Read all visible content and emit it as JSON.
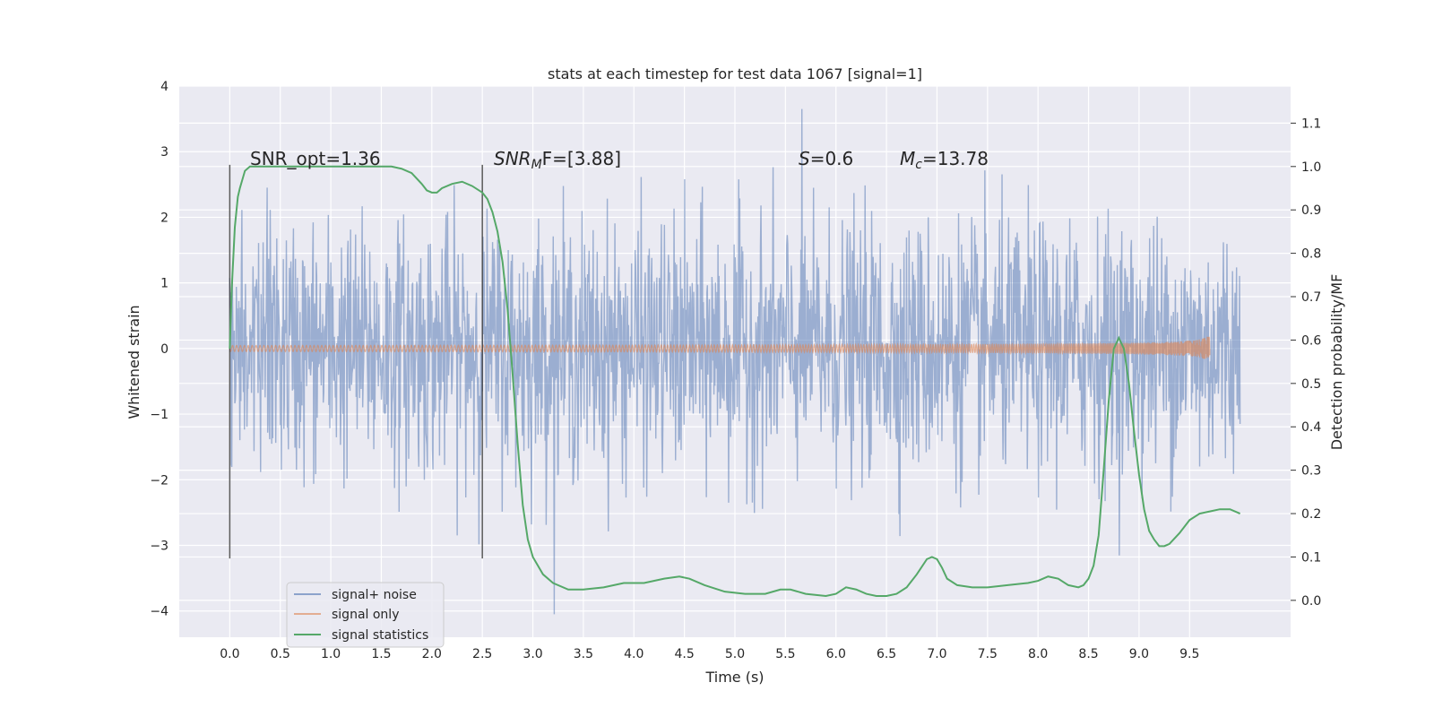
{
  "chart_data": {
    "type": "line",
    "title": "stats at each timestep for test data 1067 [signal=1]",
    "xlabel": "Time (s)",
    "ylabel": "Whitened strain",
    "y2label": "Detection probability/MF",
    "xlim": [
      -0.5,
      10.5
    ],
    "ylim": [
      -4.4,
      4.0
    ],
    "y2lim": [
      -0.085,
      1.1855
    ],
    "x_ticks": [
      0.0,
      0.5,
      1.0,
      1.5,
      2.0,
      2.5,
      3.0,
      3.5,
      4.0,
      4.5,
      5.0,
      5.5,
      6.0,
      6.5,
      7.0,
      7.5,
      8.0,
      8.5,
      9.0,
      9.5
    ],
    "x_tick_labels": [
      "0.0",
      "0.5",
      "1.0",
      "1.5",
      "2.0",
      "2.5",
      "3.0",
      "3.5",
      "4.0",
      "4.5",
      "5.0",
      "5.5",
      "6.0",
      "6.5",
      "7.0",
      "7.5",
      "8.0",
      "8.5",
      "9.0",
      "9.5"
    ],
    "y_ticks": [
      4,
      3,
      2,
      1,
      0,
      -1,
      -2,
      -3,
      -4
    ],
    "y_tick_labels": [
      "4",
      "3",
      "2",
      "1",
      "0",
      "−1",
      "−2",
      "−3",
      "−4"
    ],
    "y2_ticks": [
      1.1,
      1.0,
      0.9,
      0.8,
      0.7,
      0.6,
      0.5,
      0.4,
      0.3,
      0.2,
      0.1,
      0.0
    ],
    "y2_tick_labels": [
      "1.1",
      "1.0",
      "0.9",
      "0.8",
      "0.7",
      "0.6",
      "0.5",
      "0.4",
      "0.3",
      "0.2",
      "0.1",
      "0.0"
    ],
    "grid": true,
    "legend_position": "lower-left",
    "annotations": {
      "snr_opt": "SNR_opt=1.36",
      "snr_mf_main": "SNR",
      "snr_mf_sub": "M",
      "snr_mf_rest": "F=[3.88]",
      "s_main": "S",
      "s_rest": "=0.6",
      "mc_main": "M",
      "mc_sub": "c",
      "mc_rest": "=13.78"
    },
    "vertical_markers": [
      0.0,
      2.5
    ],
    "vertical_marker_range": [
      -3.2,
      2.8
    ],
    "series": [
      {
        "name": "signal+ noise",
        "color": "#4c72b0",
        "x_range": [
          0.0,
          10.0
        ],
        "approx_envelope": [
          -4.05,
          3.65
        ]
      },
      {
        "name": "signal only",
        "color": "#dd8452",
        "x_range": [
          0.0,
          9.7
        ],
        "chirp_peak_time": 9.7,
        "peak_amplitude": 0.22
      },
      {
        "name": "signal statistics",
        "color": "#55a868",
        "axis": "right",
        "x": [
          0.0,
          0.02,
          0.05,
          0.08,
          0.1,
          0.15,
          0.2,
          0.3,
          0.5,
          0.8,
          1.0,
          1.2,
          1.4,
          1.5,
          1.6,
          1.7,
          1.8,
          1.9,
          1.95,
          2.0,
          2.05,
          2.1,
          2.2,
          2.3,
          2.4,
          2.5,
          2.55,
          2.6,
          2.65,
          2.7,
          2.75,
          2.8,
          2.85,
          2.9,
          2.95,
          3.0,
          3.1,
          3.2,
          3.35,
          3.5,
          3.7,
          3.9,
          4.1,
          4.3,
          4.45,
          4.55,
          4.7,
          4.9,
          5.1,
          5.3,
          5.45,
          5.55,
          5.7,
          5.9,
          6.0,
          6.1,
          6.2,
          6.3,
          6.4,
          6.5,
          6.6,
          6.7,
          6.8,
          6.9,
          6.95,
          7.0,
          7.05,
          7.1,
          7.2,
          7.35,
          7.5,
          7.7,
          7.9,
          8.0,
          8.1,
          8.2,
          8.3,
          8.4,
          8.45,
          8.5,
          8.55,
          8.6,
          8.65,
          8.7,
          8.75,
          8.8,
          8.85,
          8.9,
          8.95,
          9.0,
          9.05,
          9.1,
          9.15,
          9.2,
          9.25,
          9.3,
          9.4,
          9.5,
          9.6,
          9.7,
          9.8,
          9.9,
          10.0
        ],
        "values": [
          0.58,
          0.72,
          0.86,
          0.93,
          0.95,
          0.99,
          1.0,
          1.0,
          1.0,
          1.0,
          1.0,
          1.0,
          1.0,
          1.0,
          1.0,
          0.995,
          0.985,
          0.96,
          0.945,
          0.94,
          0.94,
          0.95,
          0.96,
          0.965,
          0.955,
          0.94,
          0.925,
          0.895,
          0.85,
          0.78,
          0.67,
          0.52,
          0.36,
          0.22,
          0.14,
          0.1,
          0.06,
          0.04,
          0.025,
          0.025,
          0.03,
          0.04,
          0.04,
          0.05,
          0.055,
          0.05,
          0.035,
          0.02,
          0.015,
          0.015,
          0.025,
          0.025,
          0.015,
          0.01,
          0.015,
          0.03,
          0.025,
          0.015,
          0.01,
          0.01,
          0.015,
          0.03,
          0.06,
          0.095,
          0.1,
          0.095,
          0.075,
          0.05,
          0.035,
          0.03,
          0.03,
          0.035,
          0.04,
          0.045,
          0.055,
          0.05,
          0.035,
          0.03,
          0.035,
          0.05,
          0.08,
          0.15,
          0.3,
          0.46,
          0.58,
          0.605,
          0.58,
          0.5,
          0.39,
          0.29,
          0.21,
          0.16,
          0.14,
          0.125,
          0.125,
          0.13,
          0.155,
          0.185,
          0.2,
          0.205,
          0.21,
          0.21,
          0.2
        ]
      }
    ]
  }
}
